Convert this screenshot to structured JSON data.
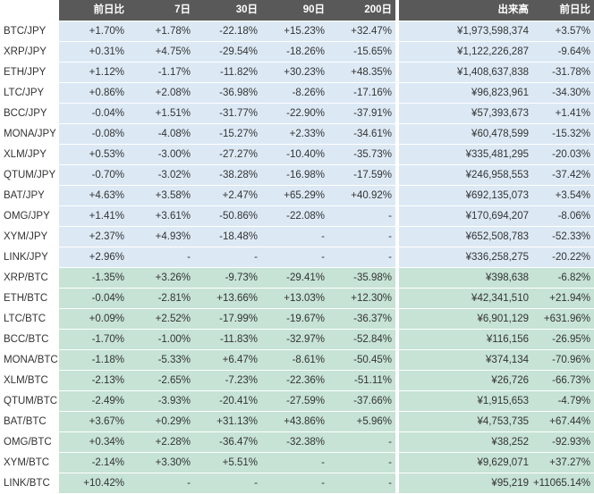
{
  "columns": {
    "pair": "",
    "day": "前日比",
    "d7": "7日",
    "d30": "30日",
    "d90": "90日",
    "d200": "200日",
    "volume": "出来高",
    "vol_day": "前日比"
  },
  "groups": [
    {
      "quote": "JPY",
      "color": "#dce9f5",
      "rows": [
        {
          "pair": "BTC/JPY",
          "day": "+1.70%",
          "d7": "+1.78%",
          "d30": "-22.18%",
          "d90": "+15.23%",
          "d200": "+32.47%",
          "volume": "¥1,973,598,374",
          "vol_day": "+3.57%"
        },
        {
          "pair": "XRP/JPY",
          "day": "+0.31%",
          "d7": "+4.75%",
          "d30": "-29.54%",
          "d90": "-18.26%",
          "d200": "-15.65%",
          "volume": "¥1,122,226,287",
          "vol_day": "-9.64%"
        },
        {
          "pair": "ETH/JPY",
          "day": "+1.12%",
          "d7": "-1.17%",
          "d30": "-11.82%",
          "d90": "+30.23%",
          "d200": "+48.35%",
          "volume": "¥1,408,637,838",
          "vol_day": "-31.78%"
        },
        {
          "pair": "LTC/JPY",
          "day": "+0.86%",
          "d7": "+2.08%",
          "d30": "-36.98%",
          "d90": "-8.26%",
          "d200": "-17.16%",
          "volume": "¥96,823,961",
          "vol_day": "-34.30%"
        },
        {
          "pair": "BCC/JPY",
          "day": "-0.04%",
          "d7": "+1.51%",
          "d30": "-31.77%",
          "d90": "-22.90%",
          "d200": "-37.91%",
          "volume": "¥57,393,673",
          "vol_day": "+1.41%"
        },
        {
          "pair": "MONA/JPY",
          "day": "-0.08%",
          "d7": "-4.08%",
          "d30": "-15.27%",
          "d90": "+2.33%",
          "d200": "-34.61%",
          "volume": "¥60,478,599",
          "vol_day": "-15.32%"
        },
        {
          "pair": "XLM/JPY",
          "day": "+0.53%",
          "d7": "-3.00%",
          "d30": "-27.27%",
          "d90": "-10.40%",
          "d200": "-35.73%",
          "volume": "¥335,481,295",
          "vol_day": "-20.03%"
        },
        {
          "pair": "QTUM/JPY",
          "day": "-0.70%",
          "d7": "-3.02%",
          "d30": "-38.28%",
          "d90": "-16.98%",
          "d200": "-17.59%",
          "volume": "¥246,958,553",
          "vol_day": "-37.42%"
        },
        {
          "pair": "BAT/JPY",
          "day": "+4.63%",
          "d7": "+3.58%",
          "d30": "+2.47%",
          "d90": "+65.29%",
          "d200": "+40.92%",
          "volume": "¥692,135,073",
          "vol_day": "+3.54%"
        },
        {
          "pair": "OMG/JPY",
          "day": "+1.41%",
          "d7": "+3.61%",
          "d30": "-50.86%",
          "d90": "-22.08%",
          "d200": "-",
          "volume": "¥170,694,207",
          "vol_day": "-8.06%"
        },
        {
          "pair": "XYM/JPY",
          "day": "+2.37%",
          "d7": "+4.93%",
          "d30": "-18.48%",
          "d90": "-",
          "d200": "-",
          "volume": "¥652,508,783",
          "vol_day": "-52.33%"
        },
        {
          "pair": "LINK/JPY",
          "day": "+2.96%",
          "d7": "-",
          "d30": "-",
          "d90": "-",
          "d200": "-",
          "volume": "¥336,258,275",
          "vol_day": "-20.22%"
        }
      ]
    },
    {
      "quote": "BTC",
      "color": "#c6e3d5",
      "rows": [
        {
          "pair": "XRP/BTC",
          "day": "-1.35%",
          "d7": "+3.26%",
          "d30": "-9.73%",
          "d90": "-29.41%",
          "d200": "-35.98%",
          "volume": "¥398,638",
          "vol_day": "-6.82%"
        },
        {
          "pair": "ETH/BTC",
          "day": "-0.04%",
          "d7": "-2.81%",
          "d30": "+13.66%",
          "d90": "+13.03%",
          "d200": "+12.30%",
          "volume": "¥42,341,510",
          "vol_day": "+21.94%"
        },
        {
          "pair": "LTC/BTC",
          "day": "+0.09%",
          "d7": "+2.52%",
          "d30": "-17.99%",
          "d90": "-19.67%",
          "d200": "-36.37%",
          "volume": "¥6,901,129",
          "vol_day": "+631.96%"
        },
        {
          "pair": "BCC/BTC",
          "day": "-1.70%",
          "d7": "-1.00%",
          "d30": "-11.83%",
          "d90": "-32.97%",
          "d200": "-52.84%",
          "volume": "¥116,156",
          "vol_day": "-26.95%"
        },
        {
          "pair": "MONA/BTC",
          "day": "-1.18%",
          "d7": "-5.33%",
          "d30": "+6.47%",
          "d90": "-8.61%",
          "d200": "-50.45%",
          "volume": "¥374,134",
          "vol_day": "-70.96%"
        },
        {
          "pair": "XLM/BTC",
          "day": "-2.13%",
          "d7": "-2.65%",
          "d30": "-7.23%",
          "d90": "-22.36%",
          "d200": "-51.11%",
          "volume": "¥26,726",
          "vol_day": "-66.73%"
        },
        {
          "pair": "QTUM/BTC",
          "day": "-2.49%",
          "d7": "-3.93%",
          "d30": "-20.41%",
          "d90": "-27.59%",
          "d200": "-37.66%",
          "volume": "¥1,915,653",
          "vol_day": "-4.79%"
        },
        {
          "pair": "BAT/BTC",
          "day": "+3.67%",
          "d7": "+0.29%",
          "d30": "+31.13%",
          "d90": "+43.86%",
          "d200": "+5.96%",
          "volume": "¥4,753,735",
          "vol_day": "+67.44%"
        },
        {
          "pair": "OMG/BTC",
          "day": "+0.34%",
          "d7": "+2.28%",
          "d30": "-36.47%",
          "d90": "-32.38%",
          "d200": "-",
          "volume": "¥38,252",
          "vol_day": "-92.93%"
        },
        {
          "pair": "XYM/BTC",
          "day": "-2.14%",
          "d7": "+3.30%",
          "d30": "+5.51%",
          "d90": "-",
          "d200": "-",
          "volume": "¥9,629,071",
          "vol_day": "+37.27%"
        },
        {
          "pair": "LINK/BTC",
          "day": "+10.42%",
          "d7": "-",
          "d30": "-",
          "d90": "-",
          "d200": "-",
          "volume": "¥95,219",
          "vol_day": "+11065.14%"
        }
      ]
    }
  ]
}
